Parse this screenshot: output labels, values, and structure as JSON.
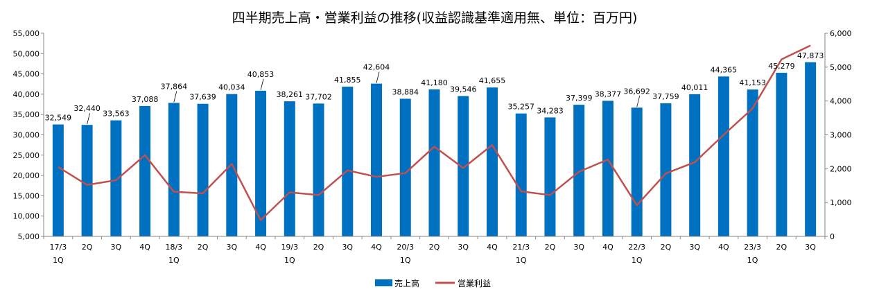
{
  "chart_data": {
    "type": "bar",
    "title": "四半期売上高・営業利益の推移(収益認識基準適用無、単位：百万円)",
    "categories": [
      "17/3 1Q",
      "2Q",
      "3Q",
      "4Q",
      "18/3 1Q",
      "2Q",
      "3Q",
      "4Q",
      "19/3 1Q",
      "2Q",
      "3Q",
      "4Q",
      "20/3 1Q",
      "2Q",
      "3Q",
      "4Q",
      "21/3 1Q",
      "2Q",
      "3Q",
      "4Q",
      "22/3 1Q",
      "2Q",
      "3Q",
      "4Q",
      "23/3 1Q",
      "2Q",
      "3Q"
    ],
    "category_lines": [
      [
        "17/3",
        "1Q"
      ],
      [
        "2Q",
        ""
      ],
      [
        "3Q",
        ""
      ],
      [
        "4Q",
        ""
      ],
      [
        "18/3",
        "1Q"
      ],
      [
        "2Q",
        ""
      ],
      [
        "3Q",
        ""
      ],
      [
        "4Q",
        ""
      ],
      [
        "19/3",
        "1Q"
      ],
      [
        "2Q",
        ""
      ],
      [
        "3Q",
        ""
      ],
      [
        "4Q",
        ""
      ],
      [
        "20/3",
        "1Q"
      ],
      [
        "2Q",
        ""
      ],
      [
        "3Q",
        ""
      ],
      [
        "4Q",
        ""
      ],
      [
        "21/3",
        "1Q"
      ],
      [
        "2Q",
        ""
      ],
      [
        "3Q",
        ""
      ],
      [
        "4Q",
        ""
      ],
      [
        "22/3",
        "1Q"
      ],
      [
        "2Q",
        ""
      ],
      [
        "3Q",
        ""
      ],
      [
        "4Q",
        ""
      ],
      [
        "23/3",
        "1Q"
      ],
      [
        "2Q",
        ""
      ],
      [
        "3Q",
        ""
      ]
    ],
    "series": [
      {
        "name": "売上高",
        "type": "bar",
        "axis": "left",
        "color": "#0070C0",
        "values": [
          32549,
          32440,
          33563,
          37088,
          37864,
          37639,
          40034,
          40853,
          38261,
          37702,
          41855,
          42604,
          38884,
          41180,
          39546,
          41655,
          35257,
          34283,
          37399,
          38377,
          36692,
          37759,
          40011,
          44365,
          41153,
          45279,
          47873
        ],
        "labels": [
          "32,549",
          "32,440",
          "33,563",
          "37,088",
          "37,864",
          "37,639",
          "40,034",
          "40,853",
          "38,261",
          "37,702",
          "41,855",
          "42,604",
          "38,884",
          "41,180",
          "39,546",
          "41,655",
          "35,257",
          "34,283",
          "37,399",
          "38,377",
          "36,692",
          "37,759",
          "40,011",
          "44,365",
          "41,153",
          "45,279",
          "47,873"
        ]
      },
      {
        "name": "営業利益",
        "type": "line",
        "axis": "right",
        "color": "#C0504D",
        "values": [
          2050,
          1520,
          1660,
          2400,
          1320,
          1270,
          2140,
          480,
          1300,
          1220,
          1950,
          1760,
          1870,
          2650,
          2020,
          2700,
          1330,
          1220,
          1910,
          2270,
          920,
          1860,
          2190,
          3000,
          3780,
          5230,
          5640
        ]
      }
    ],
    "y_left": {
      "min": 5000,
      "max": 55000,
      "step": 5000,
      "tick_labels": [
        "5,000",
        "10,000",
        "15,000",
        "20,000",
        "25,000",
        "30,000",
        "35,000",
        "40,000",
        "45,000",
        "50,000",
        "55,000"
      ]
    },
    "y_right": {
      "min": 0,
      "max": 6000,
      "step": 1000,
      "tick_labels": [
        "0",
        "1,000",
        "2,000",
        "3,000",
        "4,000",
        "5,000",
        "6,000"
      ]
    },
    "grid": false,
    "legend": {
      "position": "bottom",
      "items": [
        "売上高",
        "営業利益"
      ]
    }
  }
}
